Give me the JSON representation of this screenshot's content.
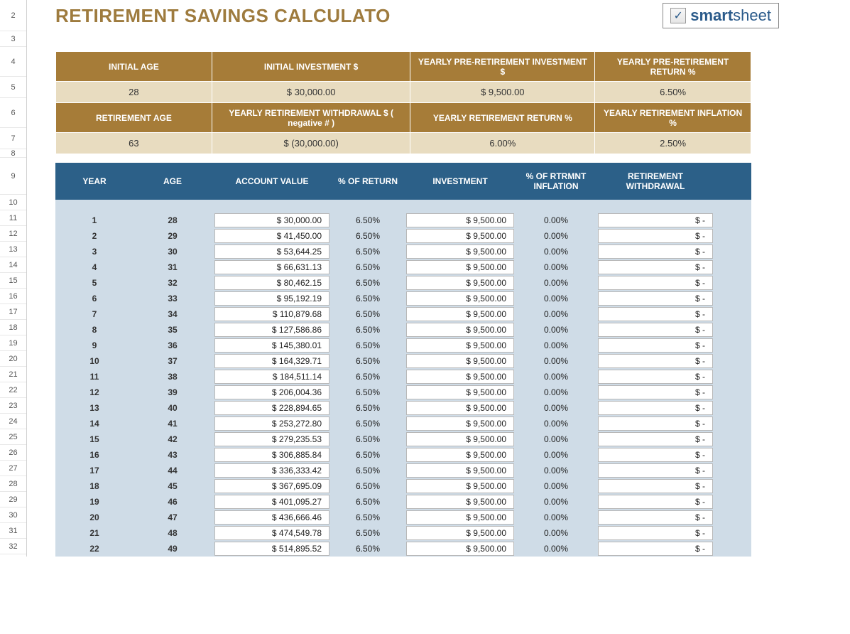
{
  "title": "RETIREMENT SAVINGS CALCULATO",
  "logo": {
    "brand_left": "smart",
    "brand_right": "sheet",
    "check": "✓"
  },
  "colors": {
    "title_color": "#9e7b3e",
    "param_header_bg": "#a67c38",
    "param_value_bg": "#e8dcc0",
    "data_header_bg": "#2c6088",
    "data_body_bg": "#cfdce7",
    "cell_bg": "#ffffff",
    "cell_border": "#b8b8b8"
  },
  "params": {
    "row1_headers": [
      "INITIAL AGE",
      "INITIAL INVESTMENT $",
      "YEARLY PRE-RETIREMENT INVESTMENT $",
      "YEARLY PRE-RETIREMENT RETURN %"
    ],
    "row1_values": [
      "28",
      "$ 30,000.00",
      "$ 9,500.00",
      "6.50%"
    ],
    "row2_headers": [
      "RETIREMENT AGE",
      "YEARLY RETIREMENT WITHDRAWAL $ ( negative # )",
      "YEARLY RETIREMENT RETURN %",
      "YEARLY RETIREMENT INFLATION %"
    ],
    "row2_values": [
      "63",
      "$ (30,000.00)",
      "6.00%",
      "2.50%"
    ]
  },
  "data_headers": [
    "YEAR",
    "AGE",
    "ACCOUNT VALUE",
    "% OF RETURN",
    "INVESTMENT",
    "% OF RTRMNT INFLATION",
    "RETIREMENT WITHDRAWAL"
  ],
  "rows": [
    {
      "year": "1",
      "age": "28",
      "account": "$ 30,000.00",
      "ret": "6.50%",
      "inv": "$ 9,500.00",
      "infl": "0.00%",
      "wd": "$ -"
    },
    {
      "year": "2",
      "age": "29",
      "account": "$ 41,450.00",
      "ret": "6.50%",
      "inv": "$ 9,500.00",
      "infl": "0.00%",
      "wd": "$ -"
    },
    {
      "year": "3",
      "age": "30",
      "account": "$ 53,644.25",
      "ret": "6.50%",
      "inv": "$ 9,500.00",
      "infl": "0.00%",
      "wd": "$ -"
    },
    {
      "year": "4",
      "age": "31",
      "account": "$ 66,631.13",
      "ret": "6.50%",
      "inv": "$ 9,500.00",
      "infl": "0.00%",
      "wd": "$ -"
    },
    {
      "year": "5",
      "age": "32",
      "account": "$ 80,462.15",
      "ret": "6.50%",
      "inv": "$ 9,500.00",
      "infl": "0.00%",
      "wd": "$ -"
    },
    {
      "year": "6",
      "age": "33",
      "account": "$ 95,192.19",
      "ret": "6.50%",
      "inv": "$ 9,500.00",
      "infl": "0.00%",
      "wd": "$ -"
    },
    {
      "year": "7",
      "age": "34",
      "account": "$ 110,879.68",
      "ret": "6.50%",
      "inv": "$ 9,500.00",
      "infl": "0.00%",
      "wd": "$ -"
    },
    {
      "year": "8",
      "age": "35",
      "account": "$ 127,586.86",
      "ret": "6.50%",
      "inv": "$ 9,500.00",
      "infl": "0.00%",
      "wd": "$ -"
    },
    {
      "year": "9",
      "age": "36",
      "account": "$ 145,380.01",
      "ret": "6.50%",
      "inv": "$ 9,500.00",
      "infl": "0.00%",
      "wd": "$ -"
    },
    {
      "year": "10",
      "age": "37",
      "account": "$ 164,329.71",
      "ret": "6.50%",
      "inv": "$ 9,500.00",
      "infl": "0.00%",
      "wd": "$ -"
    },
    {
      "year": "11",
      "age": "38",
      "account": "$ 184,511.14",
      "ret": "6.50%",
      "inv": "$ 9,500.00",
      "infl": "0.00%",
      "wd": "$ -"
    },
    {
      "year": "12",
      "age": "39",
      "account": "$ 206,004.36",
      "ret": "6.50%",
      "inv": "$ 9,500.00",
      "infl": "0.00%",
      "wd": "$ -"
    },
    {
      "year": "13",
      "age": "40",
      "account": "$ 228,894.65",
      "ret": "6.50%",
      "inv": "$ 9,500.00",
      "infl": "0.00%",
      "wd": "$ -"
    },
    {
      "year": "14",
      "age": "41",
      "account": "$ 253,272.80",
      "ret": "6.50%",
      "inv": "$ 9,500.00",
      "infl": "0.00%",
      "wd": "$ -"
    },
    {
      "year": "15",
      "age": "42",
      "account": "$ 279,235.53",
      "ret": "6.50%",
      "inv": "$ 9,500.00",
      "infl": "0.00%",
      "wd": "$ -"
    },
    {
      "year": "16",
      "age": "43",
      "account": "$ 306,885.84",
      "ret": "6.50%",
      "inv": "$ 9,500.00",
      "infl": "0.00%",
      "wd": "$ -"
    },
    {
      "year": "17",
      "age": "44",
      "account": "$ 336,333.42",
      "ret": "6.50%",
      "inv": "$ 9,500.00",
      "infl": "0.00%",
      "wd": "$ -"
    },
    {
      "year": "18",
      "age": "45",
      "account": "$ 367,695.09",
      "ret": "6.50%",
      "inv": "$ 9,500.00",
      "infl": "0.00%",
      "wd": "$ -"
    },
    {
      "year": "19",
      "age": "46",
      "account": "$ 401,095.27",
      "ret": "6.50%",
      "inv": "$ 9,500.00",
      "infl": "0.00%",
      "wd": "$ -"
    },
    {
      "year": "20",
      "age": "47",
      "account": "$ 436,666.46",
      "ret": "6.50%",
      "inv": "$ 9,500.00",
      "infl": "0.00%",
      "wd": "$ -"
    },
    {
      "year": "21",
      "age": "48",
      "account": "$ 474,549.78",
      "ret": "6.50%",
      "inv": "$ 9,500.00",
      "infl": "0.00%",
      "wd": "$ -"
    },
    {
      "year": "22",
      "age": "49",
      "account": "$ 514,895.52",
      "ret": "6.50%",
      "inv": "$ 9,500.00",
      "infl": "0.00%",
      "wd": "$ -"
    }
  ],
  "gutter_rows": [
    {
      "n": "2",
      "h": "h2"
    },
    {
      "n": "3",
      "h": ""
    },
    {
      "n": "4",
      "h": "h4"
    },
    {
      "n": "5",
      "h": "h3"
    },
    {
      "n": "6",
      "h": "h4"
    },
    {
      "n": "7",
      "h": "h3"
    },
    {
      "n": "8",
      "h": "h6"
    },
    {
      "n": "9",
      "h": "h5"
    },
    {
      "n": "10",
      "h": ""
    },
    {
      "n": "11",
      "h": ""
    },
    {
      "n": "12",
      "h": ""
    },
    {
      "n": "13",
      "h": ""
    },
    {
      "n": "14",
      "h": ""
    },
    {
      "n": "15",
      "h": ""
    },
    {
      "n": "16",
      "h": ""
    },
    {
      "n": "17",
      "h": ""
    },
    {
      "n": "18",
      "h": ""
    },
    {
      "n": "19",
      "h": ""
    },
    {
      "n": "20",
      "h": ""
    },
    {
      "n": "21",
      "h": ""
    },
    {
      "n": "22",
      "h": ""
    },
    {
      "n": "23",
      "h": ""
    },
    {
      "n": "24",
      "h": ""
    },
    {
      "n": "25",
      "h": ""
    },
    {
      "n": "26",
      "h": ""
    },
    {
      "n": "27",
      "h": ""
    },
    {
      "n": "28",
      "h": ""
    },
    {
      "n": "29",
      "h": ""
    },
    {
      "n": "30",
      "h": ""
    },
    {
      "n": "31",
      "h": ""
    },
    {
      "n": "32",
      "h": ""
    }
  ]
}
